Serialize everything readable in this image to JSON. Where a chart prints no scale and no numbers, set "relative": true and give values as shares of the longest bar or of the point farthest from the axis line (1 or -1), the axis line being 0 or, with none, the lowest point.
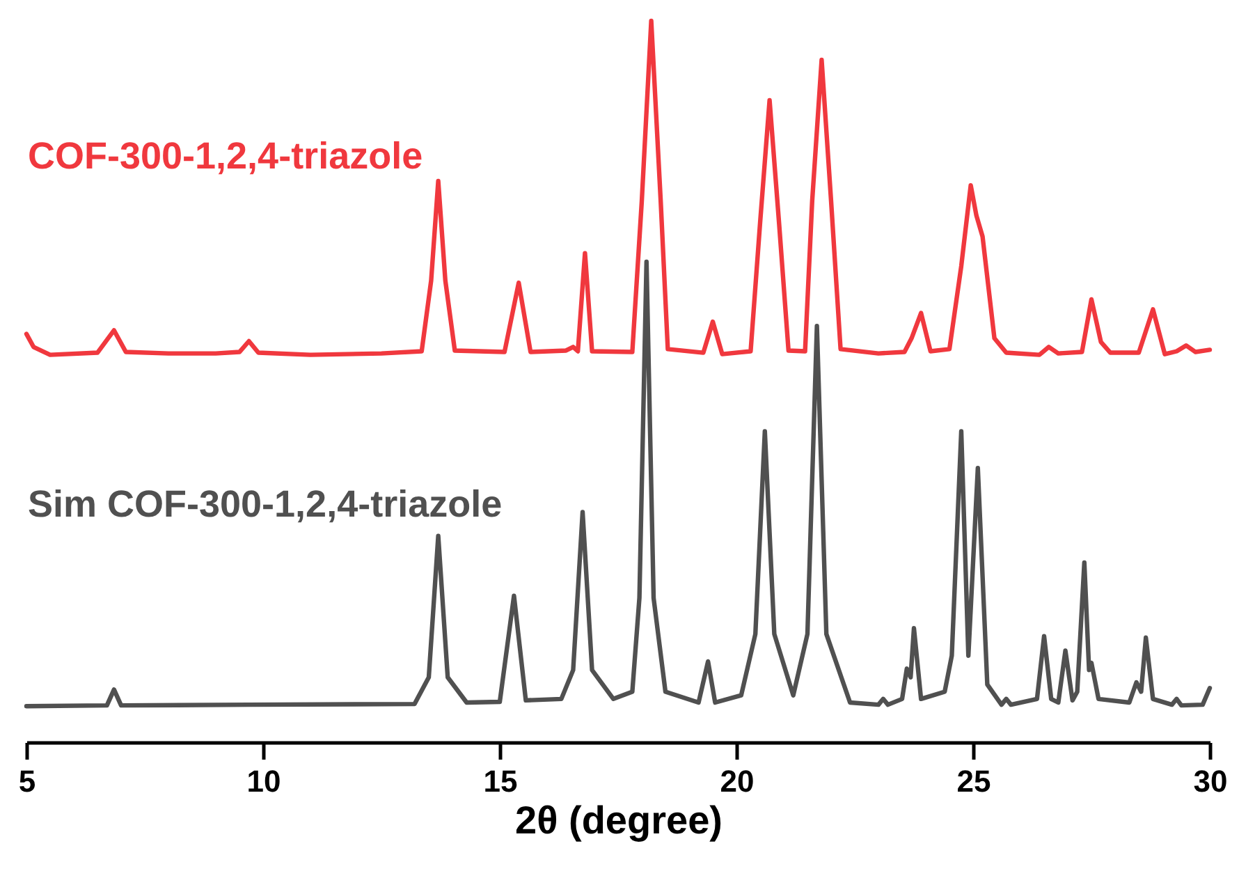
{
  "chart_data": {
    "type": "line",
    "relative": true,
    "xlabel": "2θ (degree)",
    "xlim": [
      5,
      30
    ],
    "xticks": [
      5,
      10,
      15,
      20,
      25,
      30
    ],
    "grid": false,
    "marker": "none",
    "line_style": "solid",
    "series": [
      {
        "name": "COF-300-1,2,4-triazole",
        "color": "#f0383e",
        "x": [
          5.0,
          5.15,
          5.5,
          6.5,
          6.85,
          7.1,
          8,
          9.0,
          9.5,
          9.7,
          9.9,
          11,
          12.5,
          13.35,
          13.55,
          13.7,
          13.85,
          14.05,
          15.1,
          15.4,
          15.65,
          16.4,
          16.55,
          16.65,
          16.8,
          16.95,
          17.8,
          18.0,
          18.2,
          18.4,
          18.55,
          19.3,
          19.5,
          19.7,
          20.3,
          20.5,
          20.7,
          20.9,
          21.1,
          21.45,
          21.6,
          21.8,
          22.0,
          22.2,
          23.0,
          23.55,
          23.7,
          23.9,
          24.1,
          24.5,
          24.75,
          24.95,
          25.07,
          25.2,
          25.45,
          25.7,
          26.4,
          26.6,
          26.8,
          27.3,
          27.5,
          27.7,
          27.9,
          28.5,
          28.8,
          29.05,
          29.3,
          29.5,
          29.7,
          30.0
        ],
        "values": [
          0.566,
          0.548,
          0.537,
          0.54,
          0.571,
          0.541,
          0.539,
          0.539,
          0.541,
          0.556,
          0.54,
          0.537,
          0.539,
          0.542,
          0.64,
          0.778,
          0.64,
          0.543,
          0.541,
          0.637,
          0.541,
          0.543,
          0.548,
          0.542,
          0.678,
          0.542,
          0.541,
          0.75,
          1.0,
          0.75,
          0.545,
          0.54,
          0.583,
          0.538,
          0.542,
          0.72,
          0.89,
          0.72,
          0.543,
          0.542,
          0.75,
          0.946,
          0.75,
          0.545,
          0.539,
          0.541,
          0.56,
          0.595,
          0.542,
          0.545,
          0.66,
          0.772,
          0.73,
          0.701,
          0.56,
          0.54,
          0.537,
          0.548,
          0.539,
          0.541,
          0.614,
          0.555,
          0.54,
          0.54,
          0.6,
          0.538,
          0.542,
          0.55,
          0.541,
          0.544
        ]
      },
      {
        "name": "Sim COF-300-1,2,4-triazole",
        "color": "#505050",
        "x": [
          5.0,
          6.7,
          6.85,
          7.0,
          9.7,
          13.2,
          13.5,
          13.7,
          13.9,
          14.3,
          15.0,
          15.3,
          15.55,
          16.3,
          16.55,
          16.75,
          16.95,
          17.4,
          17.8,
          17.95,
          18.1,
          18.25,
          18.5,
          19.2,
          19.4,
          19.55,
          20.1,
          20.4,
          20.6,
          20.8,
          21.2,
          21.5,
          21.7,
          21.9,
          22.4,
          23.0,
          23.1,
          23.2,
          23.5,
          23.6,
          23.68,
          23.75,
          23.9,
          24.4,
          24.55,
          24.75,
          24.9,
          25.1,
          25.3,
          25.6,
          25.7,
          25.8,
          26.35,
          26.5,
          26.65,
          26.8,
          26.95,
          27.1,
          27.2,
          27.35,
          27.45,
          27.5,
          27.65,
          28.3,
          28.45,
          28.55,
          28.65,
          28.8,
          29.2,
          29.3,
          29.4,
          29.85,
          30.0
        ],
        "values": [
          0.05,
          0.051,
          0.073,
          0.051,
          0.052,
          0.053,
          0.09,
          0.286,
          0.09,
          0.055,
          0.056,
          0.203,
          0.058,
          0.06,
          0.1,
          0.319,
          0.1,
          0.06,
          0.07,
          0.2,
          0.666,
          0.2,
          0.07,
          0.055,
          0.112,
          0.055,
          0.065,
          0.15,
          0.431,
          0.15,
          0.065,
          0.15,
          0.577,
          0.15,
          0.055,
          0.052,
          0.06,
          0.052,
          0.06,
          0.102,
          0.09,
          0.158,
          0.06,
          0.07,
          0.12,
          0.431,
          0.12,
          0.38,
          0.08,
          0.052,
          0.06,
          0.052,
          0.06,
          0.147,
          0.06,
          0.055,
          0.127,
          0.058,
          0.07,
          0.249,
          0.1,
          0.11,
          0.06,
          0.055,
          0.083,
          0.07,
          0.145,
          0.06,
          0.052,
          0.06,
          0.051,
          0.052,
          0.075
        ]
      }
    ]
  }
}
